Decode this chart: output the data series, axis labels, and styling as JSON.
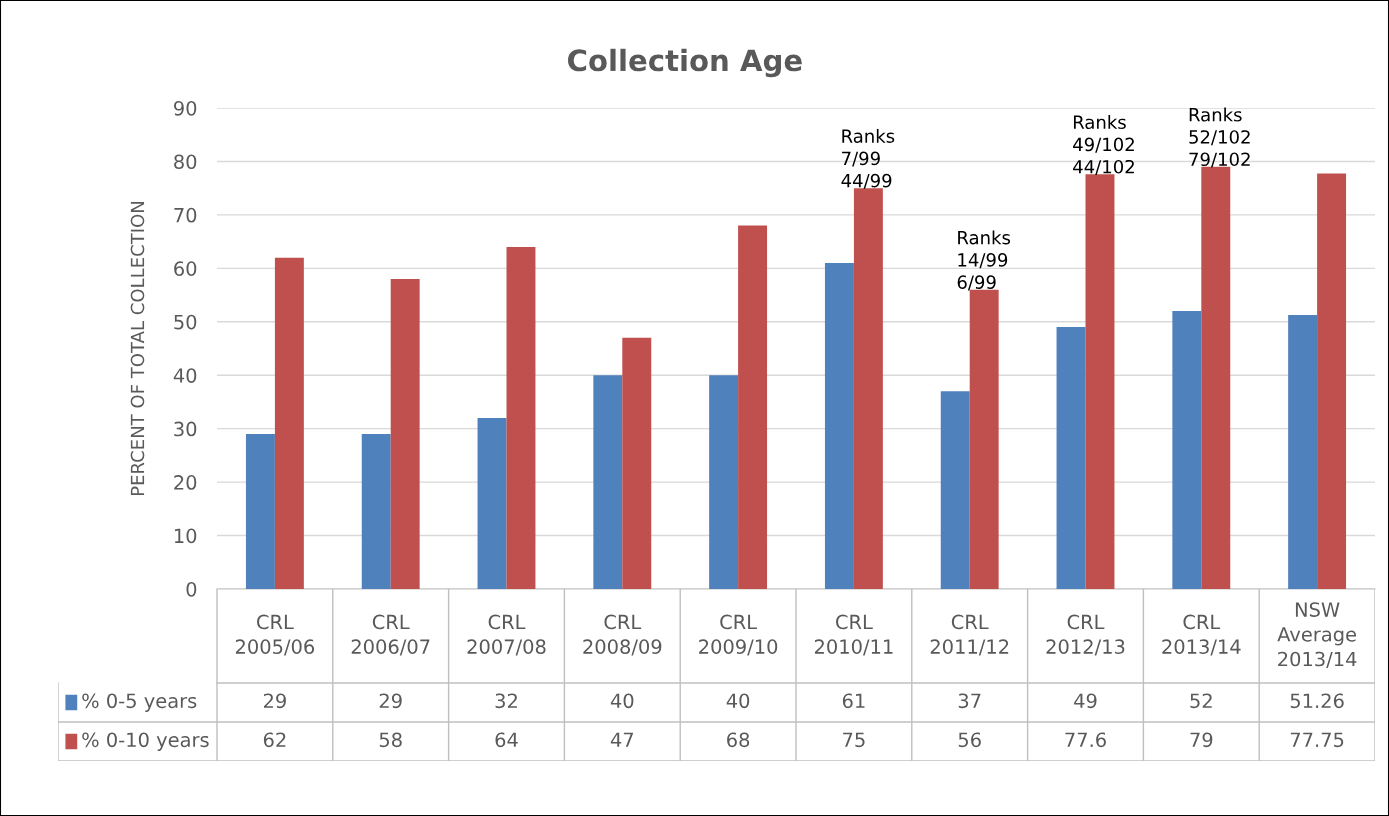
{
  "chart_data": {
    "type": "bar",
    "title": "Collection Age",
    "ylabel": "PERCENT OF TOTAL COLLECTION",
    "categories": [
      "CRL\n2005/06",
      "CRL\n2006/07",
      "CRL\n2007/08",
      "CRL\n2008/09",
      "CRL\n2009/10",
      "CRL\n2010/11",
      "CRL\n2011/12",
      "CRL\n2012/13",
      "CRL\n2013/14",
      "NSW\nAverage\n2013/14"
    ],
    "series": [
      {
        "name": "% 0-5 years",
        "color": "#4f81bd",
        "values": [
          29,
          29,
          32,
          40,
          40,
          61,
          37,
          49,
          52,
          51.26
        ]
      },
      {
        "name": "% 0-10 years",
        "color": "#c0504d",
        "values": [
          62,
          58,
          64,
          47,
          68,
          75,
          56,
          77.6,
          79,
          77.75
        ]
      }
    ],
    "ylim": [
      0,
      90
    ],
    "yticks": [
      0,
      10,
      20,
      30,
      40,
      50,
      60,
      70,
      80,
      90
    ],
    "grid": "y",
    "legend": "bottom",
    "data_labels": true,
    "annotations": [
      {
        "text": "Ranks\n7/99\n44/99",
        "x": "CRL\n2010/11",
        "y": 75
      },
      {
        "text": "Ranks\n14/99\n6/99",
        "x": "CRL\n2011/12",
        "y": 56
      },
      {
        "text": "Ranks\n49/102\n44/102",
        "x": "CRL\n2012/13",
        "y": 77.6
      },
      {
        "text": "Ranks\n52/102\n79/102",
        "x": "CRL\n2013/14",
        "y": 79
      }
    ]
  }
}
